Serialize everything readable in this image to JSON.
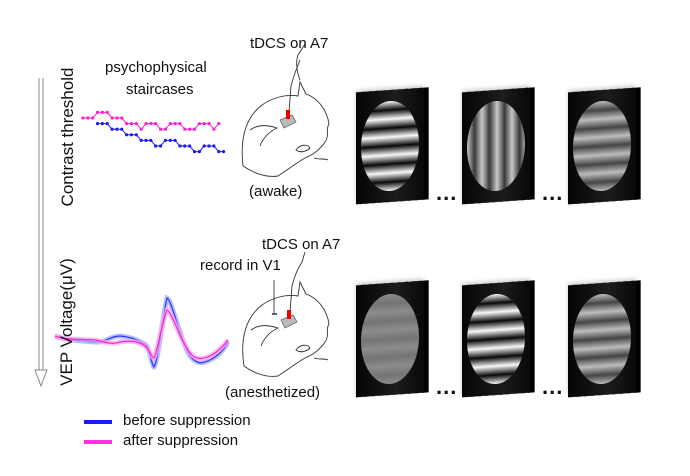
{
  "labels": {
    "contrast_threshold": "Contrast threshold",
    "vep_voltage": "VEP Voltage(μV)",
    "staircases_line1": "psychophysical",
    "staircases_line2": "staircases",
    "tdcs_top": "tDCS on A7",
    "awake": "(awake)",
    "tdcs_bottom": "tDCS on A7",
    "record": "record in V1",
    "anesthetized": "(anesthetized)",
    "ellipsis": "..."
  },
  "legend": [
    {
      "label": "before suppression",
      "color": "#1a1aff"
    },
    {
      "label": "after suppression",
      "color": "#ff33dd"
    }
  ],
  "colors": {
    "before": "#1a1aff",
    "after": "#ff1fcf",
    "electrode": "#ee0000"
  },
  "staircases": {
    "after": [
      5,
      5,
      5,
      6,
      6,
      6,
      5,
      5,
      5,
      4,
      4,
      4,
      3,
      4,
      4,
      4,
      3,
      3,
      4,
      4,
      4,
      3,
      3,
      3,
      4,
      4,
      4,
      3,
      4
    ],
    "before": [
      4,
      4,
      4,
      3,
      3,
      3,
      2,
      2,
      2,
      1,
      1,
      1,
      0,
      0,
      1,
      1,
      1,
      0,
      0,
      0,
      -1,
      -1,
      0,
      0,
      0,
      -1,
      -1
    ]
  },
  "monitors": {
    "top": [
      {
        "orientation": "horizontal",
        "contrast": 1.0
      },
      {
        "orientation": "vertical",
        "contrast": 0.6
      },
      {
        "orientation": "horizontal",
        "contrast": 0.5
      }
    ],
    "bottom": [
      {
        "orientation": "horizontal",
        "contrast": 0.1
      },
      {
        "orientation": "horizontal",
        "contrast": 1.0
      },
      {
        "orientation": "horizontal",
        "contrast": 0.5
      }
    ]
  }
}
